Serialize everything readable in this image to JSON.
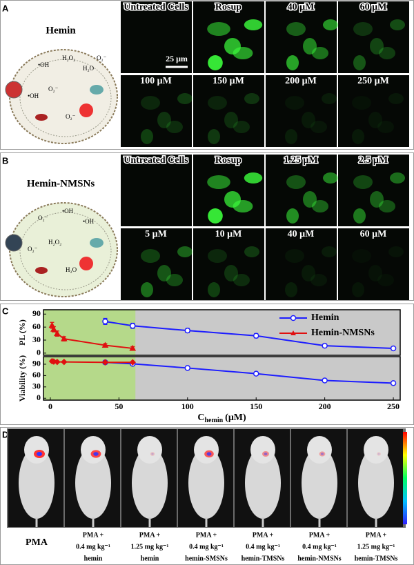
{
  "panels": [
    "A",
    "B",
    "C",
    "D"
  ],
  "panel_a": {
    "title": "Hemin",
    "scale_bar": "25 μm",
    "cell_labels": [
      "•OH",
      "H₂O₂",
      "O₂⁻",
      "H₂O",
      "•OH",
      "O₂⁻",
      "O₂⁻"
    ],
    "images": [
      "Untreated Cells",
      "Rosup",
      "40 μM",
      "60 μM",
      "100 μM",
      "150 μM",
      "200 μM",
      "250 μM"
    ]
  },
  "panel_b": {
    "title": "Hemin-NMSNs",
    "cell_labels": [
      "O₂⁻",
      "•OH",
      "H₂O₂",
      "•OH",
      "O₂⁻",
      "H₂O"
    ],
    "images": [
      "Untreated Cells",
      "Rosup",
      "1.25 μM",
      "2.5 μM",
      "5 μM",
      "10 μM",
      "40 μM",
      "60 μM"
    ]
  },
  "chart_data": [
    {
      "type": "line",
      "ylabel": "PL (%)",
      "xlim": [
        -5,
        255
      ],
      "ylim": [
        -5,
        100
      ],
      "yticks": [
        0,
        30,
        60,
        90
      ],
      "shaded_range": [
        -5,
        62
      ],
      "shade_color": "#b5d98a",
      "background": "#c9c9c9",
      "legend": "upper right",
      "series": [
        {
          "name": "Hemin",
          "color": "#1d1dff",
          "marker": "circle",
          "x": [
            40,
            60,
            100,
            150,
            200,
            250
          ],
          "values": [
            73,
            63,
            52,
            40,
            17,
            11
          ],
          "errors": [
            7,
            6,
            5,
            5,
            4,
            3
          ]
        },
        {
          "name": "Hemin-NMSNs",
          "color": "#e01010",
          "marker": "triangle",
          "x": [
            1.25,
            2.5,
            5,
            10,
            40,
            60
          ],
          "values": [
            64,
            55,
            45,
            33,
            18,
            11
          ],
          "errors": [
            7,
            6,
            6,
            5,
            4,
            4
          ]
        }
      ]
    },
    {
      "type": "line",
      "ylabel": "Viability (%)",
      "xlabel": "C",
      "xlabel_sub": "hemin",
      "xlabel_unit": "(μM)",
      "xlim": [
        -5,
        255
      ],
      "xticks": [
        0,
        50,
        100,
        150,
        200,
        250
      ],
      "ylim": [
        -5,
        110
      ],
      "yticks": [
        0,
        30,
        60,
        90
      ],
      "shaded_range": [
        -5,
        62
      ],
      "shade_color": "#b5d98a",
      "background": "#c9c9c9",
      "series": [
        {
          "name": "Hemin",
          "color": "#1d1dff",
          "marker": "circle",
          "x": [
            40,
            60,
            100,
            150,
            200,
            250
          ],
          "values": [
            95,
            91,
            80,
            65,
            47,
            40
          ],
          "errors": [
            4,
            3,
            4,
            3,
            2,
            2
          ]
        },
        {
          "name": "Hemin-NMSNs",
          "color": "#e01010",
          "marker": "diamond",
          "x": [
            1.25,
            2.5,
            5,
            10,
            40,
            60
          ],
          "values": [
            98,
            97,
            96,
            96,
            95,
            95
          ],
          "errors": [
            3,
            3,
            2,
            2,
            3,
            2
          ]
        }
      ]
    }
  ],
  "panel_d": {
    "groups": [
      [
        "PMA"
      ],
      [
        "PMA +",
        "0.4 mg kg⁻¹",
        "hemin"
      ],
      [
        "PMA +",
        "1.25 mg kg⁻¹",
        "hemin"
      ],
      [
        "PMA +",
        "0.4 mg kg⁻¹",
        "hemin-SMSNs"
      ],
      [
        "PMA +",
        "0.4 mg kg⁻¹",
        "hemin-TMSNs"
      ],
      [
        "PMA +",
        "0.4 mg kg⁻¹",
        "hemin-NMSNs"
      ],
      [
        "PMA +",
        "1.25 mg kg⁻¹",
        "hemin-TMSNs"
      ]
    ]
  }
}
